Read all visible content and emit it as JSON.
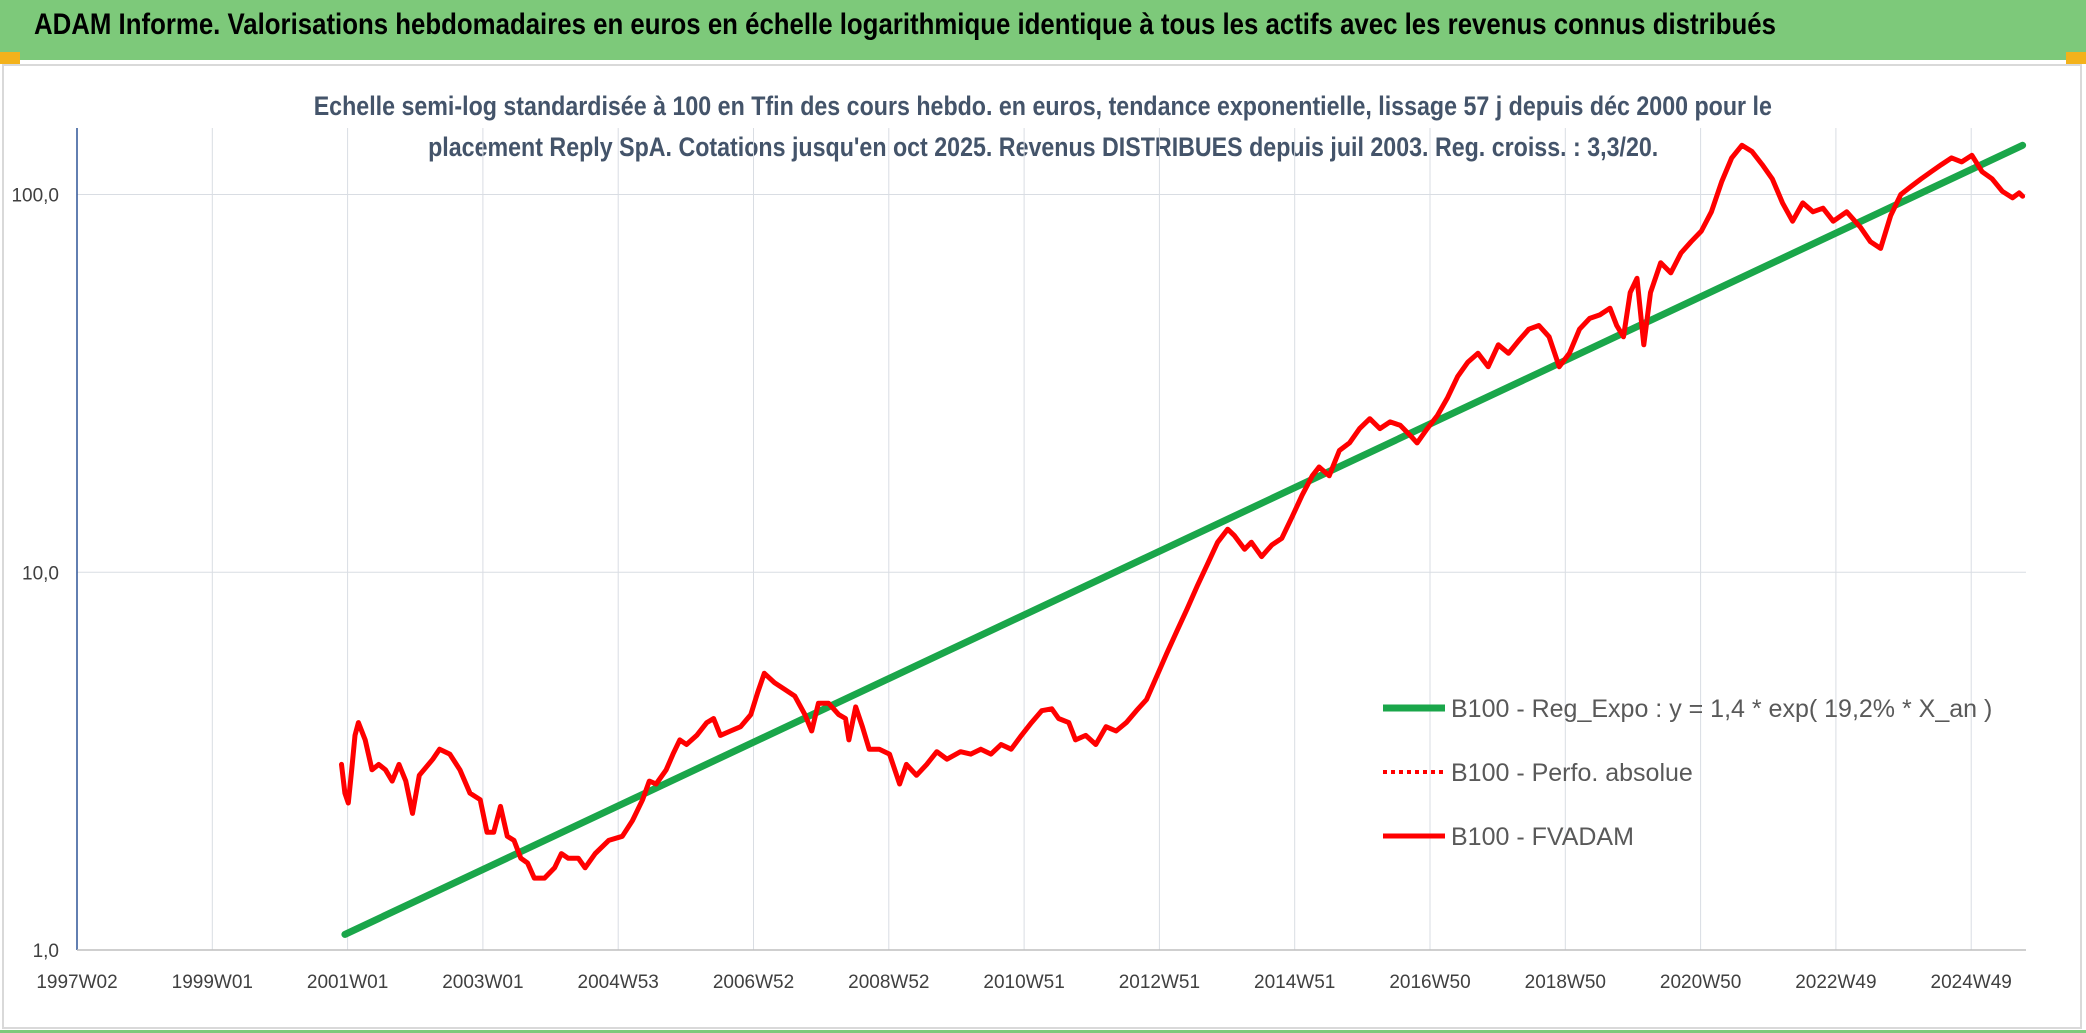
{
  "header": {
    "title": "ADAM Informe. Valorisations hebdomadaires en euros en échelle logarithmique identique à tous les actifs avec les revenus connus distribués"
  },
  "colors": {
    "header_bg": "#7dc97a",
    "trend": "#1aa64a",
    "series": "#ff0000",
    "subtitle": "#44546a",
    "grid": "#d9dde3"
  },
  "chart_data": {
    "type": "line",
    "subtitle_line1": "Echelle semi-log standardisée à 100 en Tfin des cours hebdo. en euros, tendance exponentielle, lissage 57 j depuis déc 2000 pour le",
    "subtitle_line2": "placement Reply SpA. Cotations jusqu'en oct 2025. Revenus DISTRIBUES depuis juil 2003. Reg. croiss. : 3,3/20.",
    "y_scale": "log",
    "ylim": [
      1,
      150
    ],
    "y_ticks": [
      {
        "value": 1,
        "label": "1,0"
      },
      {
        "value": 10,
        "label": "10,0"
      },
      {
        "value": 100,
        "label": "100,0"
      }
    ],
    "xlim": [
      1997.04,
      2025.85
    ],
    "x_ticks": [
      {
        "value": 1997.04,
        "label": "1997W02"
      },
      {
        "value": 1999.04,
        "label": "1999W01"
      },
      {
        "value": 2001.04,
        "label": "2001W01"
      },
      {
        "value": 2003.04,
        "label": "2003W01"
      },
      {
        "value": 2005.04,
        "label": "2004W53"
      },
      {
        "value": 2007.04,
        "label": "2006W52"
      },
      {
        "value": 2009.04,
        "label": "2008W52"
      },
      {
        "value": 2011.04,
        "label": "2010W51"
      },
      {
        "value": 2013.04,
        "label": "2012W51"
      },
      {
        "value": 2015.04,
        "label": "2014W51"
      },
      {
        "value": 2017.04,
        "label": "2016W50"
      },
      {
        "value": 2019.04,
        "label": "2018W50"
      },
      {
        "value": 2021.04,
        "label": "2020W50"
      },
      {
        "value": 2023.04,
        "label": "2022W49"
      },
      {
        "value": 2025.04,
        "label": "2024W49"
      }
    ],
    "grid": true,
    "legend_position": "right",
    "series": [
      {
        "name": "B100 - Reg_Expo : y = 1,4 * exp( 19,2% *  X_an )",
        "style": "solid-thick",
        "color": "#1aa64a",
        "points": [
          [
            2001.0,
            1.1
          ],
          [
            2025.8,
            135
          ]
        ]
      },
      {
        "name": "B100 - Perfo. absolue",
        "style": "dotted",
        "color": "#ff0000",
        "points": []
      },
      {
        "name": "B100 - FVADAM",
        "style": "solid",
        "color": "#ff0000",
        "points": [
          [
            2000.95,
            3.1
          ],
          [
            2001.0,
            2.6
          ],
          [
            2001.05,
            2.45
          ],
          [
            2001.1,
            3.0
          ],
          [
            2001.15,
            3.7
          ],
          [
            2001.2,
            4.0
          ],
          [
            2001.3,
            3.6
          ],
          [
            2001.4,
            3.0
          ],
          [
            2001.5,
            3.1
          ],
          [
            2001.6,
            3.0
          ],
          [
            2001.7,
            2.8
          ],
          [
            2001.8,
            3.1
          ],
          [
            2001.9,
            2.8
          ],
          [
            2002.0,
            2.3
          ],
          [
            2002.1,
            2.9
          ],
          [
            2002.3,
            3.2
          ],
          [
            2002.4,
            3.4
          ],
          [
            2002.55,
            3.3
          ],
          [
            2002.7,
            3.0
          ],
          [
            2002.85,
            2.6
          ],
          [
            2003.0,
            2.5
          ],
          [
            2003.1,
            2.05
          ],
          [
            2003.2,
            2.05
          ],
          [
            2003.3,
            2.4
          ],
          [
            2003.4,
            2.0
          ],
          [
            2003.5,
            1.95
          ],
          [
            2003.6,
            1.75
          ],
          [
            2003.7,
            1.7
          ],
          [
            2003.8,
            1.55
          ],
          [
            2003.95,
            1.55
          ],
          [
            2004.1,
            1.65
          ],
          [
            2004.2,
            1.8
          ],
          [
            2004.3,
            1.75
          ],
          [
            2004.45,
            1.75
          ],
          [
            2004.55,
            1.65
          ],
          [
            2004.7,
            1.8
          ],
          [
            2004.9,
            1.95
          ],
          [
            2005.1,
            2.0
          ],
          [
            2005.25,
            2.2
          ],
          [
            2005.4,
            2.5
          ],
          [
            2005.5,
            2.8
          ],
          [
            2005.6,
            2.75
          ],
          [
            2005.75,
            3.0
          ],
          [
            2005.85,
            3.3
          ],
          [
            2005.95,
            3.6
          ],
          [
            2006.05,
            3.5
          ],
          [
            2006.2,
            3.7
          ],
          [
            2006.35,
            4.0
          ],
          [
            2006.45,
            4.1
          ],
          [
            2006.55,
            3.7
          ],
          [
            2006.7,
            3.8
          ],
          [
            2006.85,
            3.9
          ],
          [
            2007.0,
            4.2
          ],
          [
            2007.1,
            4.8
          ],
          [
            2007.2,
            5.4
          ],
          [
            2007.35,
            5.1
          ],
          [
            2007.5,
            4.9
          ],
          [
            2007.65,
            4.7
          ],
          [
            2007.8,
            4.2
          ],
          [
            2007.9,
            3.8
          ],
          [
            2008.0,
            4.5
          ],
          [
            2008.15,
            4.5
          ],
          [
            2008.3,
            4.2
          ],
          [
            2008.4,
            4.1
          ],
          [
            2008.45,
            3.6
          ],
          [
            2008.55,
            4.4
          ],
          [
            2008.65,
            3.9
          ],
          [
            2008.75,
            3.4
          ],
          [
            2008.9,
            3.4
          ],
          [
            2009.05,
            3.3
          ],
          [
            2009.2,
            2.75
          ],
          [
            2009.3,
            3.1
          ],
          [
            2009.45,
            2.9
          ],
          [
            2009.6,
            3.1
          ],
          [
            2009.75,
            3.35
          ],
          [
            2009.9,
            3.2
          ],
          [
            2010.1,
            3.35
          ],
          [
            2010.25,
            3.3
          ],
          [
            2010.4,
            3.4
          ],
          [
            2010.55,
            3.3
          ],
          [
            2010.7,
            3.5
          ],
          [
            2010.85,
            3.4
          ],
          [
            2011.0,
            3.7
          ],
          [
            2011.15,
            4.0
          ],
          [
            2011.3,
            4.3
          ],
          [
            2011.45,
            4.35
          ],
          [
            2011.55,
            4.1
          ],
          [
            2011.7,
            4.0
          ],
          [
            2011.8,
            3.6
          ],
          [
            2011.95,
            3.7
          ],
          [
            2012.1,
            3.5
          ],
          [
            2012.25,
            3.9
          ],
          [
            2012.4,
            3.8
          ],
          [
            2012.55,
            4.0
          ],
          [
            2012.7,
            4.3
          ],
          [
            2012.85,
            4.6
          ],
          [
            2013.0,
            5.3
          ],
          [
            2013.15,
            6.1
          ],
          [
            2013.3,
            7.0
          ],
          [
            2013.45,
            8.0
          ],
          [
            2013.6,
            9.2
          ],
          [
            2013.75,
            10.5
          ],
          [
            2013.9,
            12.0
          ],
          [
            2014.05,
            13.0
          ],
          [
            2014.15,
            12.5
          ],
          [
            2014.3,
            11.5
          ],
          [
            2014.4,
            12.0
          ],
          [
            2014.55,
            11.0
          ],
          [
            2014.7,
            11.8
          ],
          [
            2014.85,
            12.3
          ],
          [
            2015.0,
            14.0
          ],
          [
            2015.15,
            16.0
          ],
          [
            2015.3,
            18.0
          ],
          [
            2015.4,
            19.0
          ],
          [
            2015.55,
            18.0
          ],
          [
            2015.7,
            21.0
          ],
          [
            2015.85,
            22.0
          ],
          [
            2016.0,
            24.0
          ],
          [
            2016.15,
            25.5
          ],
          [
            2016.3,
            24.0
          ],
          [
            2016.45,
            25.0
          ],
          [
            2016.6,
            24.5
          ],
          [
            2016.75,
            23.0
          ],
          [
            2016.85,
            22.0
          ],
          [
            2017.0,
            24.0
          ],
          [
            2017.15,
            26.0
          ],
          [
            2017.3,
            29.0
          ],
          [
            2017.45,
            33.0
          ],
          [
            2017.6,
            36.0
          ],
          [
            2017.75,
            38.0
          ],
          [
            2017.9,
            35.0
          ],
          [
            2018.05,
            40.0
          ],
          [
            2018.2,
            38.0
          ],
          [
            2018.35,
            41.0
          ],
          [
            2018.5,
            44.0
          ],
          [
            2018.65,
            45.0
          ],
          [
            2018.8,
            42.0
          ],
          [
            2018.95,
            35.0
          ],
          [
            2019.1,
            38.0
          ],
          [
            2019.25,
            44.0
          ],
          [
            2019.4,
            47.0
          ],
          [
            2019.55,
            48.0
          ],
          [
            2019.7,
            50.0
          ],
          [
            2019.8,
            45.0
          ],
          [
            2019.9,
            42.0
          ],
          [
            2020.0,
            55.0
          ],
          [
            2020.1,
            60.0
          ],
          [
            2020.2,
            40.0
          ],
          [
            2020.3,
            55.0
          ],
          [
            2020.45,
            66.0
          ],
          [
            2020.6,
            62.0
          ],
          [
            2020.75,
            70.0
          ],
          [
            2020.9,
            75.0
          ],
          [
            2021.05,
            80.0
          ],
          [
            2021.2,
            90.0
          ],
          [
            2021.35,
            108.0
          ],
          [
            2021.5,
            125.0
          ],
          [
            2021.65,
            135.0
          ],
          [
            2021.8,
            130.0
          ],
          [
            2021.95,
            120.0
          ],
          [
            2022.1,
            110.0
          ],
          [
            2022.25,
            95.0
          ],
          [
            2022.4,
            85.0
          ],
          [
            2022.55,
            95.0
          ],
          [
            2022.7,
            90.0
          ],
          [
            2022.85,
            92.0
          ],
          [
            2023.0,
            85.0
          ],
          [
            2023.2,
            90.0
          ],
          [
            2023.4,
            82.0
          ],
          [
            2023.55,
            75.0
          ],
          [
            2023.7,
            72.0
          ],
          [
            2023.85,
            88.0
          ],
          [
            2024.0,
            100.0
          ],
          [
            2024.15,
            105.0
          ],
          [
            2024.3,
            110.0
          ],
          [
            2024.45,
            115.0
          ],
          [
            2024.6,
            120.0
          ],
          [
            2024.75,
            125.0
          ],
          [
            2024.9,
            122.0
          ],
          [
            2025.05,
            127.0
          ],
          [
            2025.2,
            115.0
          ],
          [
            2025.35,
            110.0
          ],
          [
            2025.5,
            102.0
          ],
          [
            2025.65,
            98.0
          ],
          [
            2025.75,
            101.0
          ],
          [
            2025.8,
            99.0
          ]
        ]
      }
    ]
  }
}
